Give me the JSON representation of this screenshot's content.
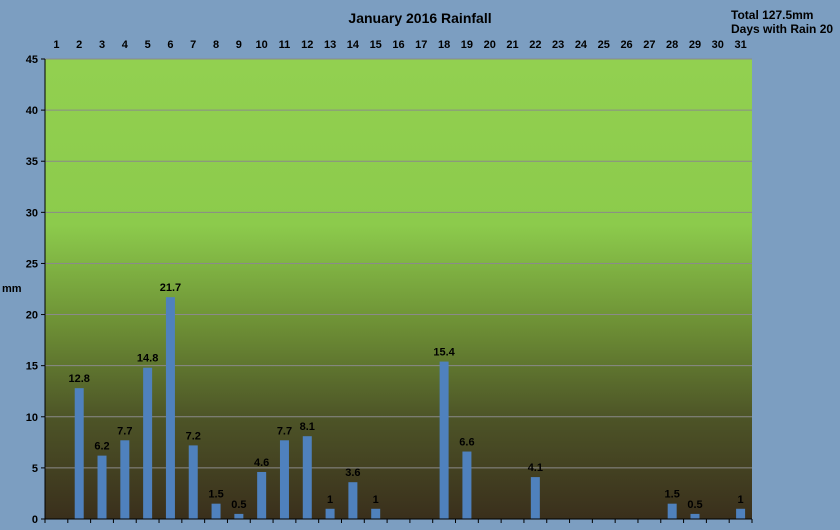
{
  "chart_data": {
    "type": "bar",
    "title": "January 2016 Rainfall",
    "summary": {
      "total": "Total 127.5mm",
      "days_with_rain": "Days with Rain 20"
    },
    "ylabel": "mm",
    "xlabel": "",
    "ylim": [
      0,
      45
    ],
    "y_ticks": [
      0,
      5,
      10,
      15,
      20,
      25,
      30,
      35,
      40,
      45
    ],
    "x_axis_position": "top",
    "grid": true,
    "categories": [
      "1",
      "2",
      "3",
      "4",
      "5",
      "6",
      "7",
      "8",
      "9",
      "10",
      "11",
      "12",
      "13",
      "14",
      "15",
      "16",
      "17",
      "18",
      "19",
      "20",
      "21",
      "22",
      "23",
      "24",
      "25",
      "26",
      "27",
      "28",
      "29",
      "30",
      "31"
    ],
    "series": [
      {
        "values": [
          0,
          12.8,
          6.2,
          7.7,
          14.8,
          21.7,
          7.2,
          1.5,
          0.5,
          4.6,
          7.7,
          8.1,
          1,
          3.6,
          1,
          0,
          0,
          15.4,
          6.6,
          0,
          0,
          4.1,
          0,
          0,
          0,
          0,
          0,
          1.5,
          0.5,
          0,
          1
        ],
        "data_labels": [
          "",
          "12.8",
          "6.2",
          "7.7",
          "14.8",
          "21.7",
          "7.2",
          "1.5",
          "0.5",
          "4.6",
          "7.7",
          "8.1",
          "1",
          "3.6",
          "1",
          "",
          "",
          "15.4",
          "6.6",
          "",
          "",
          "4.1",
          "",
          "",
          "",
          "",
          "",
          "1.5",
          "0.5",
          "",
          "1"
        ]
      }
    ],
    "colors": {
      "background": "#7c9ec1",
      "plot_top": "#92d050",
      "plot_bottom": "#3a2f1c",
      "bar": "#4f81bd",
      "gridline": "#8a8a8a",
      "axis": "#000000"
    }
  }
}
